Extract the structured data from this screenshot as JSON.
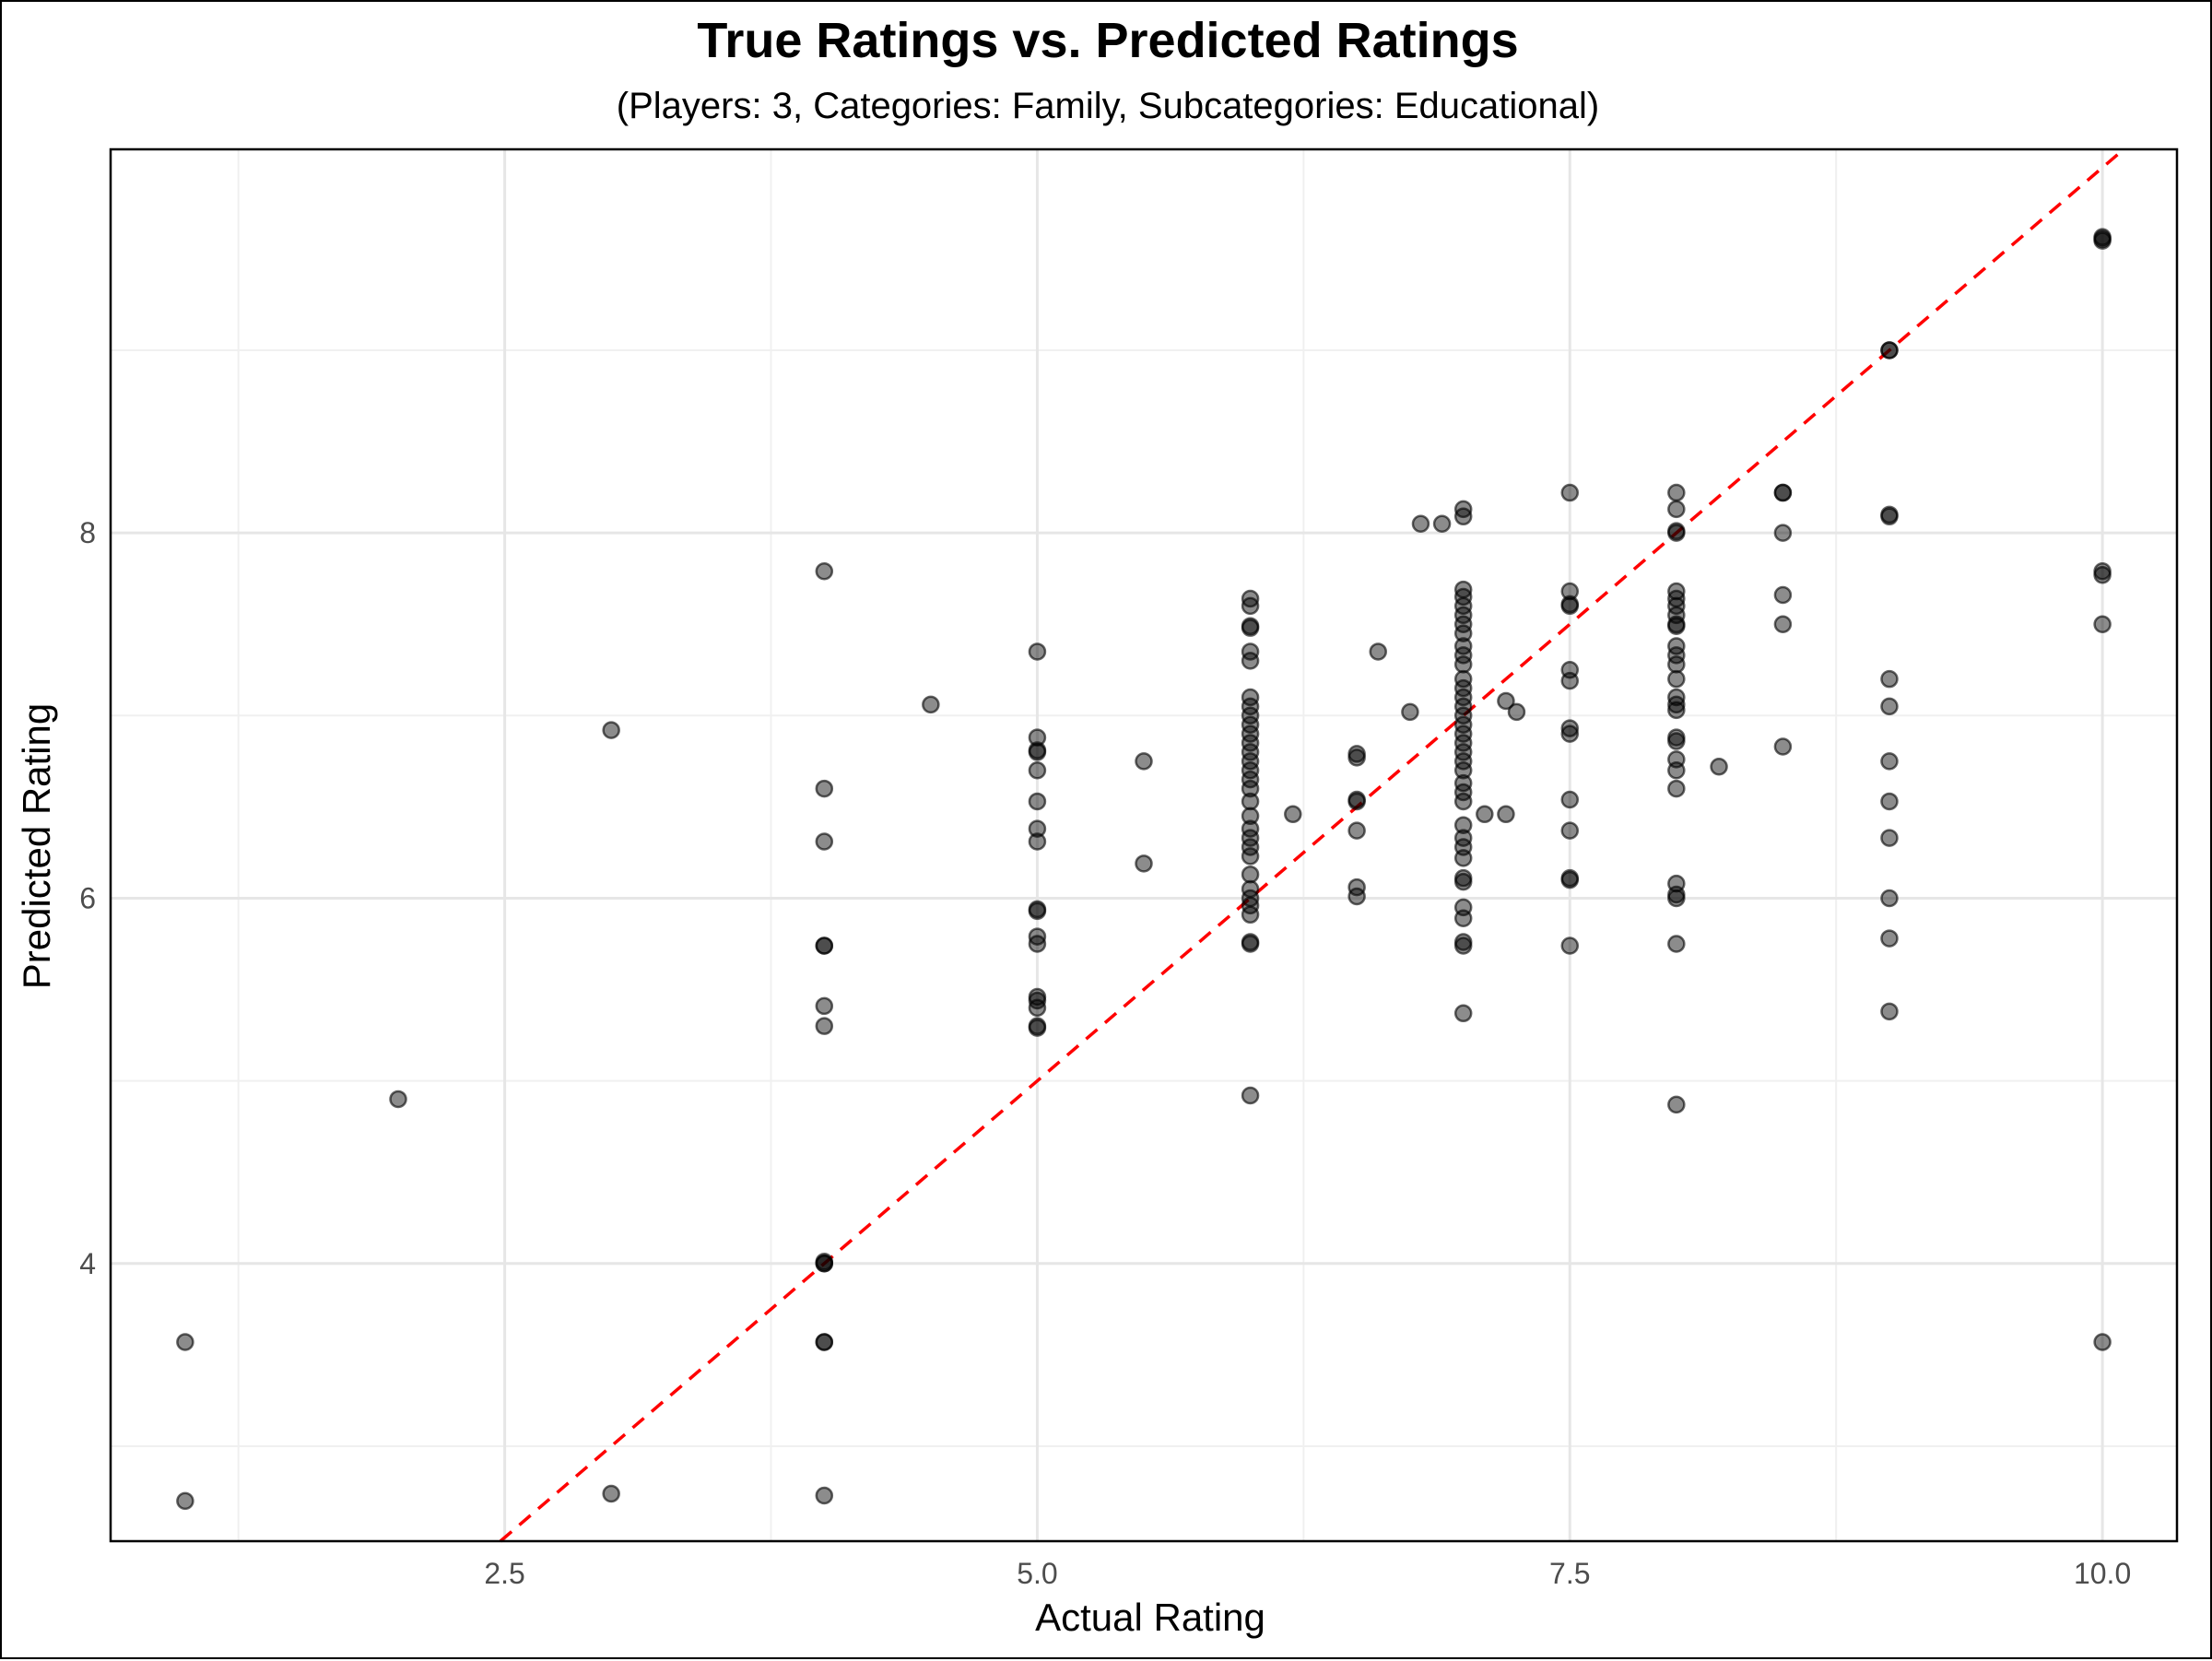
{
  "chart_data": {
    "type": "scatter",
    "title": "True Ratings vs. Predicted Ratings",
    "subtitle": "(Players: 3, Categories: Family, Subcategories: Educational)",
    "xlabel": "Actual Rating",
    "ylabel": "Predicted Rating",
    "xlim": [
      0.65,
      10.35
    ],
    "ylim": [
      2.48,
      10.1
    ],
    "x_ticks": [
      2.5,
      5.0,
      7.5,
      10.0
    ],
    "x_tick_labels": [
      "2.5",
      "5.0",
      "7.5",
      "10.0"
    ],
    "x_minor": [
      1.25,
      3.75,
      6.25,
      8.75
    ],
    "y_ticks": [
      4,
      6,
      8
    ],
    "y_tick_labels": [
      "4",
      "6",
      "8"
    ],
    "y_minor": [
      3,
      5,
      7,
      9
    ],
    "grid": true,
    "legend": "none",
    "reference_line": {
      "slope": 1,
      "intercept": 0,
      "style": "dashed",
      "color": "#ff0000"
    },
    "point_color": "#000000",
    "point_alpha": 0.45,
    "points": [
      [
        1.0,
        3.57
      ],
      [
        1.0,
        2.7
      ],
      [
        2.0,
        4.9
      ],
      [
        3.0,
        6.92
      ],
      [
        3.0,
        2.74
      ],
      [
        4.5,
        7.06
      ],
      [
        4.0,
        7.79
      ],
      [
        4.0,
        6.6
      ],
      [
        4.0,
        6.31
      ],
      [
        4.0,
        5.74
      ],
      [
        4.0,
        5.74
      ],
      [
        4.0,
        5.41
      ],
      [
        4.0,
        5.3
      ],
      [
        4.0,
        4.01
      ],
      [
        4.0,
        4.0
      ],
      [
        4.0,
        4.0
      ],
      [
        4.0,
        3.57
      ],
      [
        4.0,
        3.57
      ],
      [
        4.0,
        2.73
      ],
      [
        5.0,
        7.35
      ],
      [
        5.0,
        6.88
      ],
      [
        5.0,
        6.81
      ],
      [
        5.0,
        6.8
      ],
      [
        5.0,
        6.7
      ],
      [
        5.0,
        6.53
      ],
      [
        5.0,
        6.38
      ],
      [
        5.0,
        6.31
      ],
      [
        5.0,
        5.94
      ],
      [
        5.0,
        5.93
      ],
      [
        5.0,
        5.79
      ],
      [
        5.0,
        5.75
      ],
      [
        5.0,
        5.46
      ],
      [
        5.0,
        5.44
      ],
      [
        5.0,
        5.4
      ],
      [
        5.0,
        5.3
      ],
      [
        5.0,
        5.29
      ],
      [
        5.5,
        6.75
      ],
      [
        5.5,
        6.19
      ],
      [
        6.0,
        7.64
      ],
      [
        6.0,
        7.6
      ],
      [
        6.0,
        7.49
      ],
      [
        6.0,
        7.48
      ],
      [
        6.0,
        7.35
      ],
      [
        6.0,
        7.3
      ],
      [
        6.0,
        7.1
      ],
      [
        6.0,
        7.05
      ],
      [
        6.0,
        7.0
      ],
      [
        6.0,
        6.95
      ],
      [
        6.0,
        6.9
      ],
      [
        6.0,
        6.85
      ],
      [
        6.0,
        6.8
      ],
      [
        6.0,
        6.75
      ],
      [
        6.0,
        6.7
      ],
      [
        6.0,
        6.65
      ],
      [
        6.0,
        6.6
      ],
      [
        6.0,
        6.53
      ],
      [
        6.0,
        6.45
      ],
      [
        6.0,
        6.38
      ],
      [
        6.0,
        6.33
      ],
      [
        6.0,
        6.28
      ],
      [
        6.0,
        6.23
      ],
      [
        6.0,
        6.13
      ],
      [
        6.0,
        6.05
      ],
      [
        6.0,
        6.0
      ],
      [
        6.0,
        5.96
      ],
      [
        6.0,
        5.91
      ],
      [
        6.0,
        5.76
      ],
      [
        6.0,
        5.75
      ],
      [
        6.0,
        4.92
      ],
      [
        6.2,
        6.46
      ],
      [
        6.5,
        6.79
      ],
      [
        6.5,
        6.77
      ],
      [
        6.5,
        6.54
      ],
      [
        6.5,
        6.53
      ],
      [
        6.5,
        6.37
      ],
      [
        6.5,
        6.06
      ],
      [
        6.5,
        6.01
      ],
      [
        6.6,
        7.35
      ],
      [
        6.75,
        7.02
      ],
      [
        6.8,
        8.05
      ],
      [
        6.9,
        8.05
      ],
      [
        7.0,
        8.13
      ],
      [
        7.0,
        8.09
      ],
      [
        7.0,
        7.69
      ],
      [
        7.0,
        7.65
      ],
      [
        7.0,
        7.6
      ],
      [
        7.0,
        7.55
      ],
      [
        7.0,
        7.5
      ],
      [
        7.0,
        7.45
      ],
      [
        7.0,
        7.38
      ],
      [
        7.0,
        7.33
      ],
      [
        7.0,
        7.28
      ],
      [
        7.0,
        7.2
      ],
      [
        7.0,
        7.15
      ],
      [
        7.0,
        7.1
      ],
      [
        7.0,
        7.05
      ],
      [
        7.0,
        7.0
      ],
      [
        7.0,
        6.95
      ],
      [
        7.0,
        6.9
      ],
      [
        7.0,
        6.85
      ],
      [
        7.0,
        6.8
      ],
      [
        7.0,
        6.75
      ],
      [
        7.0,
        6.7
      ],
      [
        7.0,
        6.63
      ],
      [
        7.0,
        6.58
      ],
      [
        7.0,
        6.53
      ],
      [
        7.0,
        6.4
      ],
      [
        7.0,
        6.33
      ],
      [
        7.0,
        6.28
      ],
      [
        7.0,
        6.22
      ],
      [
        7.0,
        6.11
      ],
      [
        7.0,
        6.09
      ],
      [
        7.0,
        5.95
      ],
      [
        7.0,
        5.89
      ],
      [
        7.0,
        5.76
      ],
      [
        7.0,
        5.74
      ],
      [
        7.0,
        5.37
      ],
      [
        7.1,
        6.46
      ],
      [
        7.2,
        6.46
      ],
      [
        7.2,
        7.08
      ],
      [
        7.25,
        7.02
      ],
      [
        7.5,
        8.22
      ],
      [
        7.5,
        7.68
      ],
      [
        7.5,
        7.61
      ],
      [
        7.5,
        7.6
      ],
      [
        7.5,
        7.25
      ],
      [
        7.5,
        7.19
      ],
      [
        7.5,
        6.93
      ],
      [
        7.5,
        6.9
      ],
      [
        7.5,
        6.54
      ],
      [
        7.5,
        6.37
      ],
      [
        7.5,
        6.11
      ],
      [
        7.5,
        6.1
      ],
      [
        7.5,
        5.74
      ],
      [
        8.0,
        8.22
      ],
      [
        8.0,
        8.13
      ],
      [
        8.0,
        8.01
      ],
      [
        8.0,
        8.0
      ],
      [
        8.0,
        7.68
      ],
      [
        8.0,
        7.64
      ],
      [
        8.0,
        7.6
      ],
      [
        8.0,
        7.55
      ],
      [
        8.0,
        7.5
      ],
      [
        8.0,
        7.49
      ],
      [
        8.0,
        7.38
      ],
      [
        8.0,
        7.33
      ],
      [
        8.0,
        7.28
      ],
      [
        8.0,
        7.2
      ],
      [
        8.0,
        7.1
      ],
      [
        8.0,
        7.06
      ],
      [
        8.0,
        7.03
      ],
      [
        8.0,
        6.88
      ],
      [
        8.0,
        6.86
      ],
      [
        8.0,
        6.76
      ],
      [
        8.0,
        6.7
      ],
      [
        8.0,
        6.6
      ],
      [
        8.0,
        6.08
      ],
      [
        8.0,
        6.02
      ],
      [
        8.0,
        6.0
      ],
      [
        8.0,
        5.75
      ],
      [
        8.0,
        4.87
      ],
      [
        8.2,
        6.72
      ],
      [
        8.5,
        8.22
      ],
      [
        8.5,
        8.22
      ],
      [
        8.5,
        8.0
      ],
      [
        8.5,
        7.66
      ],
      [
        8.5,
        7.5
      ],
      [
        8.5,
        6.83
      ],
      [
        9.0,
        9.0
      ],
      [
        9.0,
        9.0
      ],
      [
        9.0,
        8.1
      ],
      [
        9.0,
        8.09
      ],
      [
        9.0,
        7.2
      ],
      [
        9.0,
        7.05
      ],
      [
        9.0,
        6.75
      ],
      [
        9.0,
        6.53
      ],
      [
        9.0,
        6.33
      ],
      [
        9.0,
        6.0
      ],
      [
        9.0,
        5.78
      ],
      [
        9.0,
        5.38
      ],
      [
        10.0,
        9.62
      ],
      [
        10.0,
        9.61
      ],
      [
        10.0,
        9.6
      ],
      [
        10.0,
        7.79
      ],
      [
        10.0,
        7.77
      ],
      [
        10.0,
        7.5
      ],
      [
        10.0,
        3.57
      ]
    ]
  }
}
